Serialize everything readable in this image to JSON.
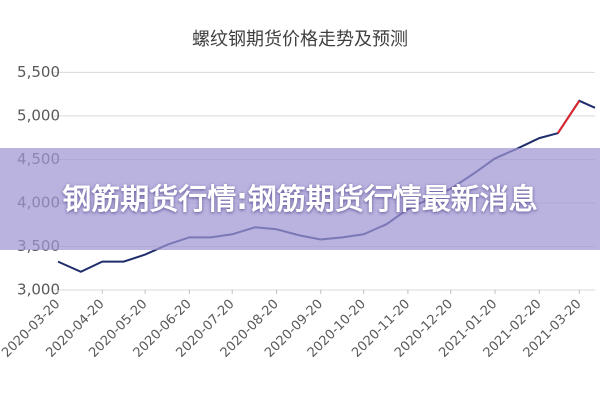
{
  "chart_data": {
    "type": "line",
    "title": "螺纹钢期货价格走势及预测",
    "x": [
      "2020-03-20",
      "2020-04-05",
      "2020-04-20",
      "2020-05-05",
      "2020-05-20",
      "2020-06-05",
      "2020-06-20",
      "2020-07-05",
      "2020-07-20",
      "2020-08-05",
      "2020-08-20",
      "2020-09-05",
      "2020-09-20",
      "2020-10-05",
      "2020-10-20",
      "2020-11-05",
      "2020-11-20",
      "2020-12-05",
      "2020-12-20",
      "2021-01-05",
      "2021-01-20",
      "2021-02-05",
      "2021-02-20",
      "2021-03-05",
      "2021-03-20",
      "2021-03-31"
    ],
    "series": [
      {
        "color": "#1f2d6b",
        "values": [
          3326,
          3209,
          3326,
          3326,
          3407,
          3523,
          3605,
          3605,
          3640,
          3721,
          3698,
          3628,
          3581,
          3605,
          3640,
          3756,
          3930,
          4047,
          4163,
          4337,
          4512,
          4628,
          4745,
          4802,
          5174,
          5093
        ]
      },
      {
        "color": "#e0262b",
        "values": [
          null,
          null,
          null,
          null,
          null,
          null,
          null,
          null,
          null,
          null,
          null,
          null,
          null,
          null,
          null,
          null,
          null,
          null,
          null,
          null,
          null,
          null,
          null,
          4802,
          5174,
          null
        ]
      }
    ],
    "xlim": [
      "2020-03-20",
      "2021-03-31"
    ],
    "xticks": [
      "2020-03-20",
      "2020-04-20",
      "2020-05-20",
      "2020-06-20",
      "2020-07-20",
      "2020-08-20",
      "2020-09-20",
      "2020-10-20",
      "2020-11-20",
      "2020-12-20",
      "2021-01-20",
      "2021-02-20",
      "2021-03-20"
    ],
    "ylim": [
      3000,
      5700
    ],
    "yticks": [
      {
        "value": 3000,
        "label": "3,000"
      },
      {
        "value": 3500,
        "label": "3,500"
      },
      {
        "value": 4000,
        "label": "4,000"
      },
      {
        "value": 4500,
        "label": "4,500"
      },
      {
        "value": 5000,
        "label": "5,000"
      },
      {
        "value": 5500,
        "label": "5,500"
      }
    ],
    "grid": true
  },
  "banner": {
    "title": "钢筋期货行情:钢筋期货行情最新消息"
  }
}
